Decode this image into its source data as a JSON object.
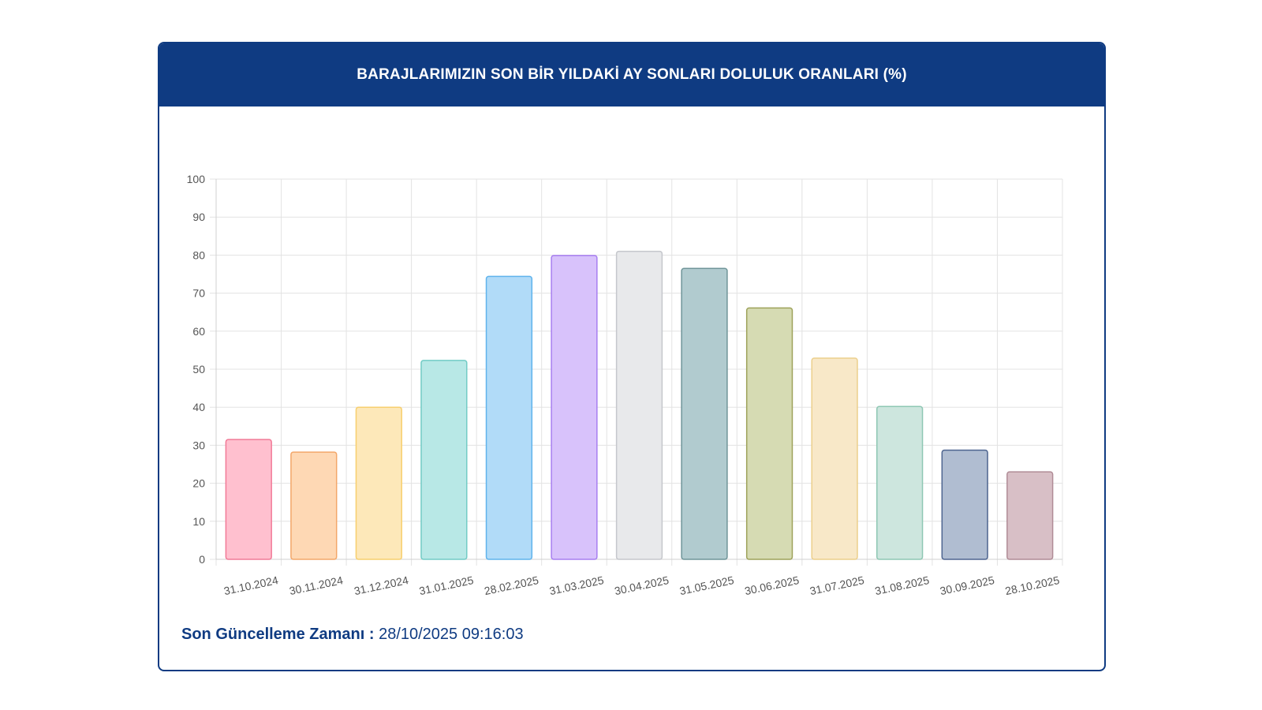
{
  "header": {
    "title": "BARAJLARIMIZIN SON BİR YILDAKİ AY SONLARI DOLULUK ORANLARI (%)"
  },
  "footer": {
    "label": "Son Güncelleme Zamanı :",
    "value": "28/10/2025 09:16:03"
  },
  "chart_data": {
    "type": "bar",
    "categories": [
      "31.10.2024",
      "30.11.2024",
      "31.12.2024",
      "31.01.2025",
      "28.02.2025",
      "31.03.2025",
      "30.04.2025",
      "31.05.2025",
      "30.06.2025",
      "31.07.2025",
      "31.08.2025",
      "30.09.2025",
      "28.10.2025"
    ],
    "values": [
      31.5,
      28.2,
      40.0,
      52.3,
      74.4,
      79.9,
      81.0,
      76.5,
      66.1,
      52.9,
      40.2,
      28.7,
      23.0
    ],
    "ylim": [
      0,
      100
    ],
    "yticks": [
      0,
      10,
      20,
      30,
      40,
      50,
      60,
      70,
      80,
      90,
      100
    ],
    "grid": true,
    "fills": [
      "#ffc0cf",
      "#fed8b4",
      "#fde8b9",
      "#b8e8e6",
      "#b1dbf8",
      "#d8c2fb",
      "#e8e9eb",
      "#b1cbcf",
      "#d6dbb3",
      "#f8e8c8",
      "#cde6de",
      "#b0bdd1",
      "#d8bfc6"
    ],
    "strokes": [
      "#f17a97",
      "#f3a76a",
      "#f7cf6e",
      "#72cbc5",
      "#5fb3ec",
      "#a77ef0",
      "#c5c7cc",
      "#6f9599",
      "#9ea25a",
      "#eccf8c",
      "#8ec7b3",
      "#4e6590",
      "#b08c96"
    ]
  }
}
